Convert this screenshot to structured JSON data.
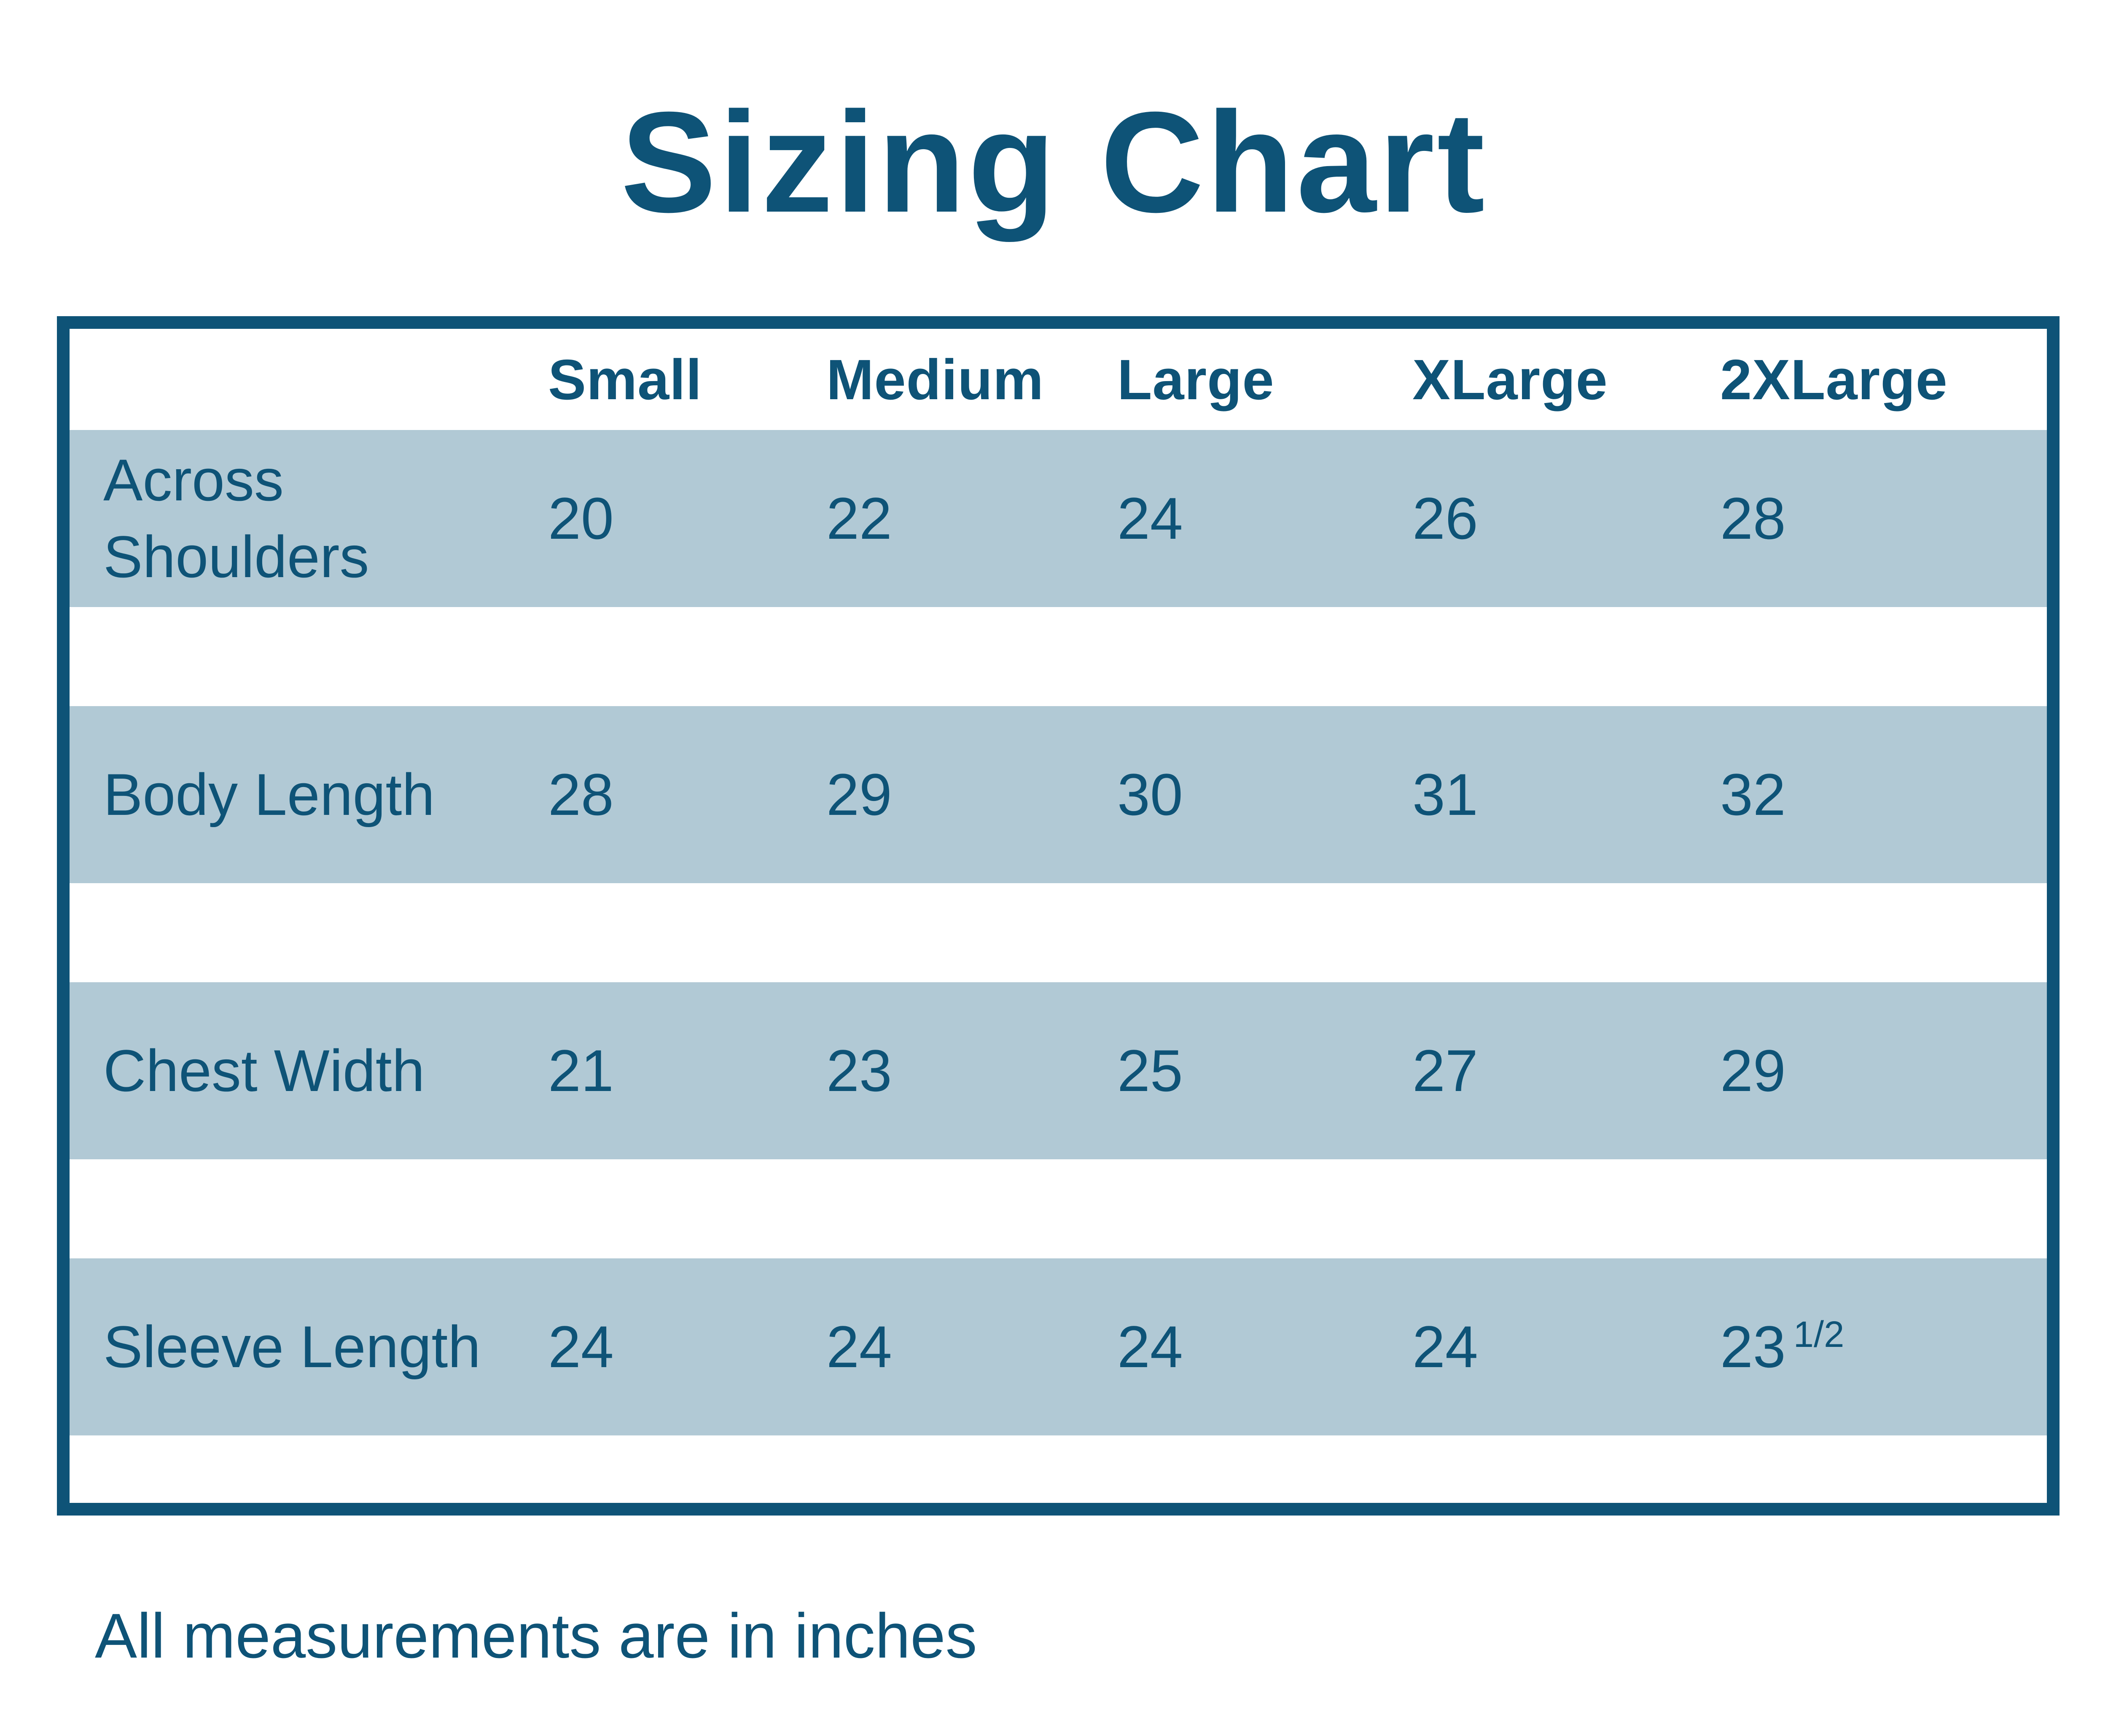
{
  "title": "Sizing Chart",
  "footer": "All measurements are in inches",
  "colors": {
    "accent": "#0E5377",
    "row_band": "#B1C9D5",
    "background": "#FFFFFF"
  },
  "table": {
    "columns": [
      "Small",
      "Medium",
      "Large",
      "XLarge",
      "2XLarge"
    ],
    "rows": [
      {
        "label": "Across Shoulders",
        "values": [
          "20",
          "22",
          "24",
          "26",
          "28"
        ]
      },
      {
        "label": "Body Length",
        "values": [
          "28",
          "29",
          "30",
          "31",
          "32"
        ]
      },
      {
        "label": "Chest Width",
        "values": [
          "21",
          "23",
          "25",
          "27",
          "29"
        ]
      },
      {
        "label": "Sleeve Length",
        "values": [
          "24",
          "24",
          "24",
          "24",
          "23"
        ],
        "last_value_fraction": "1/2"
      }
    ]
  },
  "chart_data": {
    "type": "table",
    "title": "Sizing Chart",
    "columns": [
      "Small",
      "Medium",
      "Large",
      "XLarge",
      "2XLarge"
    ],
    "rows": [
      {
        "label": "Across Shoulders",
        "values": [
          20,
          22,
          24,
          26,
          28
        ]
      },
      {
        "label": "Body Length",
        "values": [
          28,
          29,
          30,
          31,
          32
        ]
      },
      {
        "label": "Chest Width",
        "values": [
          21,
          23,
          25,
          27,
          29
        ]
      },
      {
        "label": "Sleeve Length",
        "values": [
          24,
          24,
          24,
          24,
          23.5
        ]
      }
    ],
    "note": "All measurements are in inches",
    "layout": {
      "header_position": "top",
      "row_striping": "light-blue bands separated by white gaps",
      "border": "thick dark blue frame"
    }
  }
}
